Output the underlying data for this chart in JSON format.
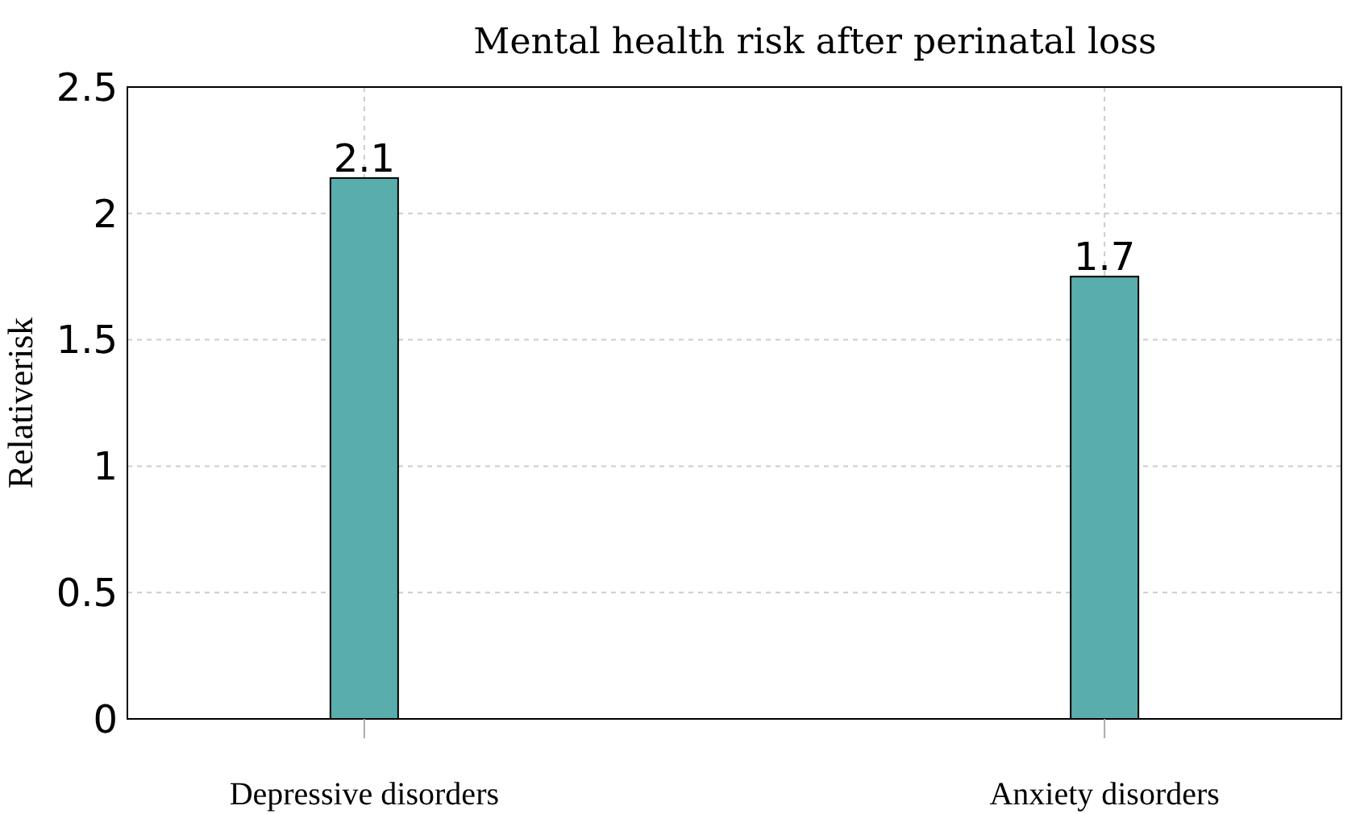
{
  "chart_data": {
    "type": "bar",
    "title": "Mental health risk after perinatal loss",
    "ylabel": "Relativerisk",
    "categories": [
      "Depressive disorders",
      "Anxiety disorders"
    ],
    "values": [
      2.14,
      1.75
    ],
    "value_labels": [
      "2.1",
      "1.7"
    ],
    "color": "#5aadad",
    "ylim": [
      0,
      2.5
    ],
    "yticks": [
      0,
      0.5,
      1,
      1.5,
      2,
      2.5
    ],
    "grid": true
  }
}
